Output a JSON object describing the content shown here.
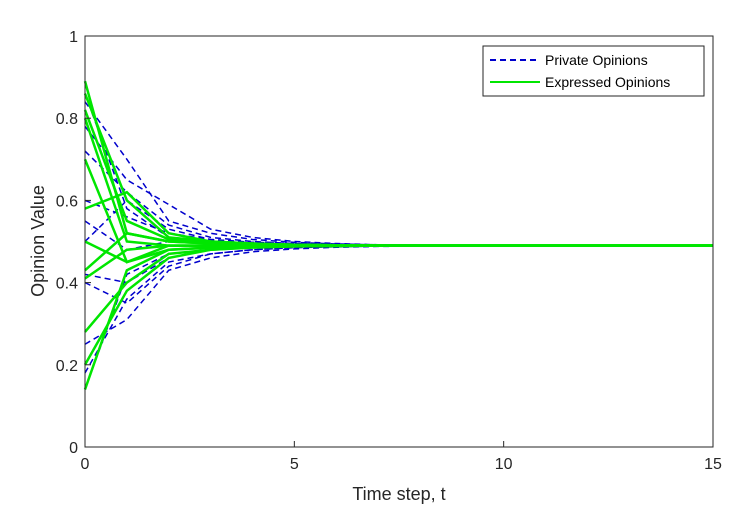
{
  "chart_data": {
    "type": "line",
    "xlabel": "Time step, t",
    "ylabel": "Opinion Value",
    "xlim": [
      0,
      15
    ],
    "ylim": [
      0,
      1
    ],
    "xticks": [
      "0",
      "5",
      "10",
      "15"
    ],
    "yticks": [
      "0",
      "0.2",
      "0.4",
      "0.6",
      "0.8",
      "1"
    ],
    "grid": false,
    "legend_position": "top-right",
    "colors": {
      "private": "#0000cc",
      "expressed": "#00e600"
    },
    "x": [
      0,
      1,
      2,
      3,
      4,
      5,
      6,
      7,
      8,
      9,
      10,
      11,
      12,
      13,
      14,
      15
    ],
    "series": [
      {
        "name": "Private Opinions",
        "style": "dashed",
        "color": "#0000cc",
        "lines": [
          [
            0.84,
            0.7,
            0.55,
            0.52,
            0.505,
            0.498,
            0.494,
            0.492,
            0.491,
            0.49,
            0.49,
            0.49,
            0.49,
            0.49,
            0.49,
            0.49
          ],
          [
            0.78,
            0.65,
            0.59,
            0.53,
            0.51,
            0.5,
            0.495,
            0.492,
            0.491,
            0.49,
            0.49,
            0.49,
            0.49,
            0.49,
            0.49,
            0.49
          ],
          [
            0.72,
            0.62,
            0.54,
            0.51,
            0.5,
            0.495,
            0.493,
            0.491,
            0.49,
            0.49,
            0.49,
            0.49,
            0.49,
            0.49,
            0.49,
            0.49
          ],
          [
            0.6,
            0.56,
            0.52,
            0.505,
            0.498,
            0.495,
            0.492,
            0.491,
            0.49,
            0.49,
            0.49,
            0.49,
            0.49,
            0.49,
            0.49,
            0.49
          ],
          [
            0.55,
            0.48,
            0.5,
            0.495,
            0.493,
            0.492,
            0.491,
            0.49,
            0.49,
            0.49,
            0.49,
            0.49,
            0.49,
            0.49,
            0.49,
            0.49
          ],
          [
            0.42,
            0.4,
            0.46,
            0.48,
            0.485,
            0.487,
            0.489,
            0.49,
            0.49,
            0.49,
            0.49,
            0.49,
            0.49,
            0.49,
            0.49,
            0.49
          ],
          [
            0.4,
            0.35,
            0.44,
            0.47,
            0.48,
            0.485,
            0.488,
            0.489,
            0.49,
            0.49,
            0.49,
            0.49,
            0.49,
            0.49,
            0.49,
            0.49
          ],
          [
            0.25,
            0.31,
            0.43,
            0.46,
            0.475,
            0.482,
            0.486,
            0.488,
            0.489,
            0.49,
            0.49,
            0.49,
            0.49,
            0.49,
            0.49,
            0.49
          ],
          [
            0.18,
            0.36,
            0.45,
            0.47,
            0.48,
            0.485,
            0.487,
            0.489,
            0.49,
            0.49,
            0.49,
            0.49,
            0.49,
            0.49,
            0.49,
            0.49
          ],
          [
            0.14,
            0.42,
            0.47,
            0.48,
            0.485,
            0.487,
            0.489,
            0.49,
            0.49,
            0.49,
            0.49,
            0.49,
            0.49,
            0.49,
            0.49,
            0.49
          ],
          [
            0.86,
            0.58,
            0.51,
            0.5,
            0.495,
            0.493,
            0.491,
            0.49,
            0.49,
            0.49,
            0.49,
            0.49,
            0.49,
            0.49,
            0.49,
            0.49
          ],
          [
            0.5,
            0.6,
            0.53,
            0.505,
            0.498,
            0.494,
            0.492,
            0.491,
            0.49,
            0.49,
            0.49,
            0.49,
            0.49,
            0.49,
            0.49,
            0.49
          ]
        ]
      },
      {
        "name": "Expressed Opinions",
        "style": "solid",
        "color": "#00e600",
        "lines": [
          [
            0.89,
            0.52,
            0.5,
            0.495,
            0.493,
            0.491,
            0.49,
            0.49,
            0.49,
            0.49,
            0.49,
            0.49,
            0.49,
            0.49,
            0.49,
            0.49
          ],
          [
            0.86,
            0.6,
            0.51,
            0.5,
            0.495,
            0.492,
            0.491,
            0.49,
            0.49,
            0.49,
            0.49,
            0.49,
            0.49,
            0.49,
            0.49,
            0.49
          ],
          [
            0.82,
            0.55,
            0.505,
            0.498,
            0.494,
            0.492,
            0.491,
            0.49,
            0.49,
            0.49,
            0.49,
            0.49,
            0.49,
            0.49,
            0.49,
            0.49
          ],
          [
            0.8,
            0.5,
            0.49,
            0.49,
            0.49,
            0.49,
            0.49,
            0.49,
            0.49,
            0.49,
            0.49,
            0.49,
            0.49,
            0.49,
            0.49,
            0.49
          ],
          [
            0.7,
            0.45,
            0.48,
            0.485,
            0.488,
            0.489,
            0.49,
            0.49,
            0.49,
            0.49,
            0.49,
            0.49,
            0.49,
            0.49,
            0.49,
            0.49
          ],
          [
            0.58,
            0.62,
            0.52,
            0.5,
            0.495,
            0.492,
            0.491,
            0.49,
            0.49,
            0.49,
            0.49,
            0.49,
            0.49,
            0.49,
            0.49,
            0.49
          ],
          [
            0.5,
            0.45,
            0.49,
            0.49,
            0.49,
            0.49,
            0.49,
            0.49,
            0.49,
            0.49,
            0.49,
            0.49,
            0.49,
            0.49,
            0.49,
            0.49
          ],
          [
            0.43,
            0.52,
            0.5,
            0.495,
            0.492,
            0.491,
            0.49,
            0.49,
            0.49,
            0.49,
            0.49,
            0.49,
            0.49,
            0.49,
            0.49,
            0.49
          ],
          [
            0.41,
            0.48,
            0.49,
            0.49,
            0.49,
            0.49,
            0.49,
            0.49,
            0.49,
            0.49,
            0.49,
            0.49,
            0.49,
            0.49,
            0.49,
            0.49
          ],
          [
            0.28,
            0.4,
            0.47,
            0.48,
            0.486,
            0.488,
            0.489,
            0.49,
            0.49,
            0.49,
            0.49,
            0.49,
            0.49,
            0.49,
            0.49,
            0.49
          ],
          [
            0.2,
            0.38,
            0.46,
            0.48,
            0.485,
            0.488,
            0.489,
            0.49,
            0.49,
            0.49,
            0.49,
            0.49,
            0.49,
            0.49,
            0.49,
            0.49
          ],
          [
            0.14,
            0.43,
            0.48,
            0.485,
            0.488,
            0.489,
            0.49,
            0.49,
            0.49,
            0.49,
            0.49,
            0.49,
            0.49,
            0.49,
            0.49,
            0.49
          ]
        ]
      }
    ]
  }
}
